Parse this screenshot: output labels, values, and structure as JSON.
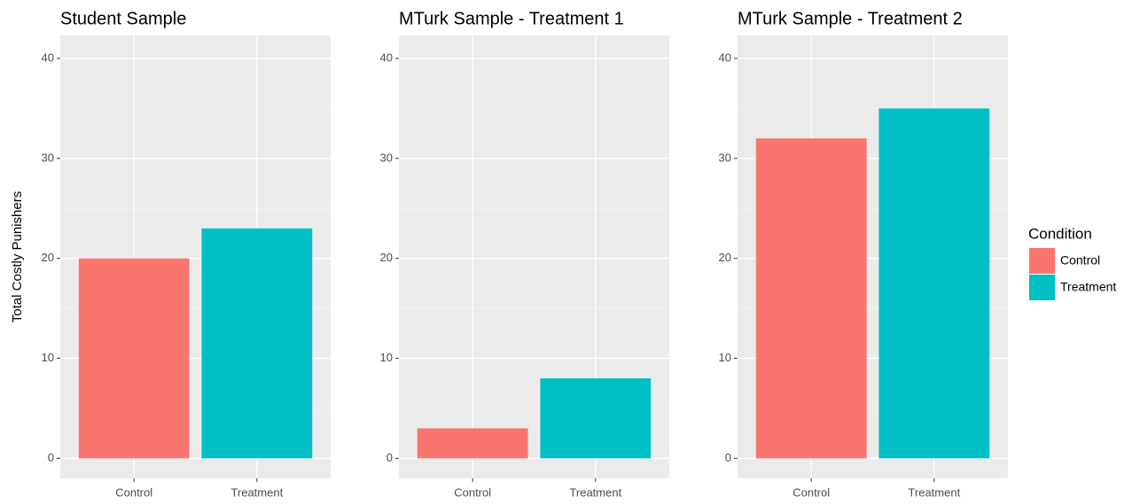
{
  "chart_data": [
    {
      "type": "bar",
      "title": "Student Sample",
      "ylabel": "Total Costly Punishers",
      "categories": [
        "Control",
        "Treatment"
      ],
      "values": [
        20,
        23
      ],
      "ylim": [
        -2,
        42.3
      ],
      "yticks": [
        0,
        10,
        20,
        30,
        40
      ],
      "grid": true
    },
    {
      "type": "bar",
      "title": "MTurk Sample - Treatment 1",
      "categories": [
        "Control",
        "Treatment"
      ],
      "values": [
        3,
        8
      ],
      "ylim": [
        -2,
        42.3
      ],
      "yticks": [
        0,
        10,
        20,
        30,
        40
      ],
      "grid": true
    },
    {
      "type": "bar",
      "title": "MTurk Sample - Treatment 2",
      "categories": [
        "Control",
        "Treatment"
      ],
      "values": [
        32,
        35
      ],
      "ylim": [
        -2,
        42.3
      ],
      "yticks": [
        0,
        10,
        20,
        30,
        40
      ],
      "grid": true
    }
  ],
  "legend": {
    "title": "Condition",
    "items": [
      {
        "name": "Control",
        "color": "#f8766d"
      },
      {
        "name": "Treatment",
        "color": "#00bfc4"
      }
    ]
  }
}
